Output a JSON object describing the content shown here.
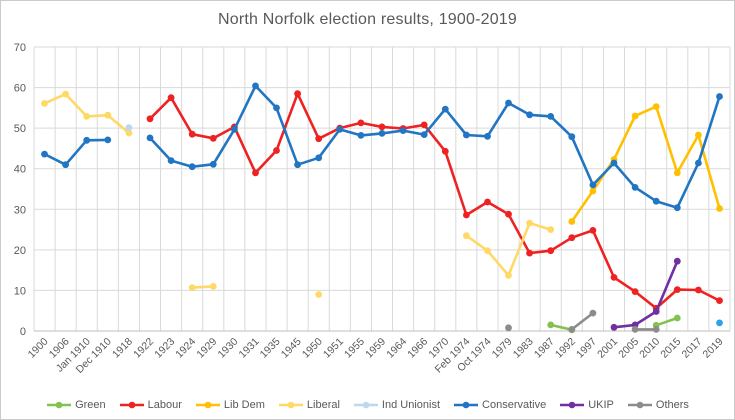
{
  "chart_data": {
    "type": "line",
    "title": "North Norfolk election results, 1900-2019",
    "xlabel": "",
    "ylabel": "",
    "ylim": [
      0,
      70
    ],
    "yticks": [
      0,
      10,
      20,
      30,
      40,
      50,
      60,
      70
    ],
    "grid": "both-light-gray",
    "legend_position": "bottom",
    "marker_style": "filled-circle",
    "colors": {
      "gridline": "#d9d9d9",
      "axis_line": "#bfbfbf",
      "tick_label": "#595959",
      "title": "#595959"
    },
    "categories": [
      "1900",
      "1906",
      "Jan 1910",
      "Dec 1910",
      "1918",
      "1922",
      "1923",
      "1924",
      "1929",
      "1930",
      "1931",
      "1935",
      "1945",
      "1950",
      "1951",
      "1955",
      "1959",
      "1964",
      "1966",
      "1970",
      "Feb 1974",
      "Oct 1974",
      "1979",
      "1983",
      "1987",
      "1992",
      "1997",
      "2001",
      "2005",
      "2010",
      "2015",
      "2017",
      "2019"
    ],
    "series": [
      {
        "name": "Green",
        "color": "#84c250",
        "values": [
          null,
          null,
          null,
          null,
          null,
          null,
          null,
          null,
          null,
          null,
          null,
          null,
          null,
          null,
          null,
          null,
          null,
          null,
          null,
          null,
          null,
          null,
          null,
          null,
          1.5,
          0.3,
          null,
          null,
          null,
          1.4,
          3.2,
          null,
          null
        ]
      },
      {
        "name": "Labour",
        "color": "#ee2222",
        "values": [
          null,
          null,
          null,
          null,
          null,
          52.3,
          57.5,
          48.5,
          47.5,
          50.3,
          39,
          44.5,
          58.5,
          47.4,
          50,
          51.3,
          50.3,
          49.9,
          50.8,
          44.3,
          28.6,
          31.8,
          28.8,
          19.2,
          19.8,
          23,
          24.8,
          13.2,
          9.7,
          5.6,
          10.2,
          10.1,
          7.5
        ]
      },
      {
        "name": "Lib Dem",
        "color": "#ffc000",
        "values": [
          null,
          null,
          null,
          null,
          null,
          null,
          null,
          null,
          null,
          null,
          null,
          null,
          null,
          null,
          null,
          null,
          null,
          null,
          null,
          null,
          null,
          null,
          null,
          null,
          null,
          27,
          34.5,
          42.3,
          53,
          55.3,
          39,
          48.3,
          30.2
        ]
      },
      {
        "name": "Liberal",
        "color": "#ffd966",
        "values": [
          56.1,
          58.4,
          52.9,
          53.2,
          48.8,
          null,
          null,
          10.7,
          11,
          null,
          null,
          null,
          null,
          9,
          null,
          null,
          null,
          null,
          null,
          null,
          23.5,
          19.8,
          13.7,
          26.6,
          25,
          null,
          null,
          null,
          null,
          null,
          null,
          null,
          null
        ]
      },
      {
        "name": "Ind Unionist",
        "color": "#bdd7ee",
        "point_colors": {
          "32": "#2aa3e8"
        },
        "values": [
          null,
          null,
          null,
          null,
          50.1,
          null,
          null,
          null,
          null,
          null,
          null,
          null,
          null,
          null,
          null,
          null,
          null,
          null,
          null,
          null,
          null,
          null,
          null,
          null,
          null,
          null,
          null,
          null,
          null,
          null,
          null,
          null,
          2
        ]
      },
      {
        "name": "Conservative",
        "color": "#2175c2",
        "values": [
          43.6,
          41,
          47,
          47.1,
          null,
          47.6,
          42,
          40.5,
          41.1,
          49.7,
          60.4,
          55,
          41,
          42.7,
          49.7,
          48.2,
          48.7,
          49.4,
          48.4,
          54.7,
          48.3,
          48,
          56.2,
          53.3,
          52.9,
          47.9,
          36,
          41.4,
          35.4,
          32,
          30.4,
          41.4,
          57.8
        ]
      },
      {
        "name": "UKIP",
        "color": "#7030a0",
        "values": [
          null,
          null,
          null,
          null,
          null,
          null,
          null,
          null,
          null,
          null,
          null,
          null,
          null,
          null,
          null,
          null,
          null,
          null,
          null,
          null,
          null,
          null,
          null,
          null,
          null,
          null,
          null,
          0.9,
          1.5,
          4.8,
          17.2,
          null,
          null
        ]
      },
      {
        "name": "Others",
        "color": "#8c8c8c",
        "values": [
          null,
          null,
          null,
          null,
          null,
          null,
          null,
          null,
          null,
          null,
          null,
          null,
          null,
          null,
          null,
          null,
          null,
          null,
          null,
          null,
          null,
          null,
          0.8,
          null,
          null,
          0.4,
          4.4,
          null,
          0.4,
          0.4,
          null,
          null,
          null
        ]
      }
    ]
  }
}
